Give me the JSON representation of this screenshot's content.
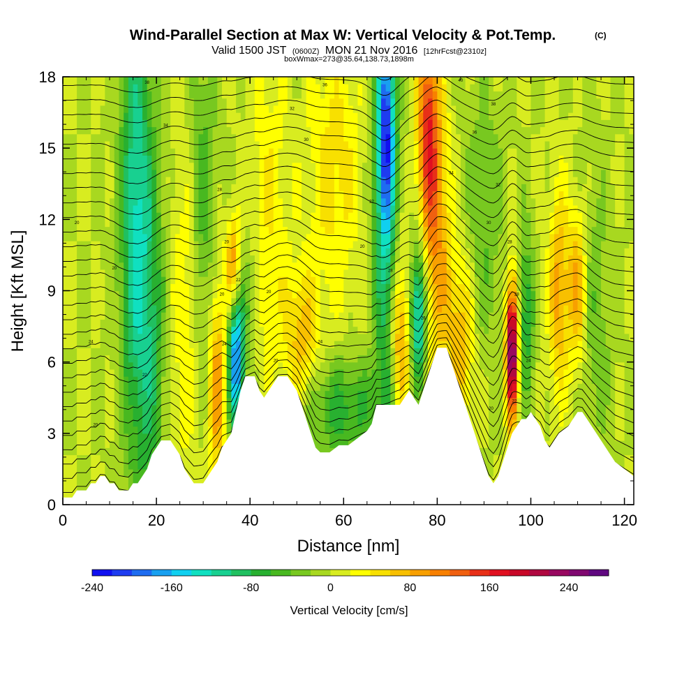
{
  "title": {
    "main": "Wind-Parallel Section at Max W: Vertical Velocity & Pot.Temp.",
    "main_sup": "(C)",
    "valid_a": "Valid 1500 JST",
    "valid_b": "(0600Z)",
    "valid_c": "MON 21 Nov 2016",
    "valid_d": "[12hrFcst@2310z]",
    "box_line": "boxWmax=273@35.64,138.73,1898m"
  },
  "chart_data": {
    "type": "heatmap",
    "xlabel": "Distance [nm]",
    "ylabel": "Height [Kft MSL]",
    "xlim": [
      0,
      122
    ],
    "ylim": [
      0,
      18
    ],
    "x_ticks": [
      "0",
      "20",
      "40",
      "60",
      "80",
      "100",
      "120"
    ],
    "y_ticks": [
      "0",
      "3",
      "6",
      "9",
      "12",
      "15",
      "18"
    ],
    "colorbar": {
      "label": "Vertical Velocity [cm/s]",
      "range": [
        -240,
        280
      ],
      "step": 20,
      "tick_labels": [
        "-240",
        "-160",
        "-80",
        "0",
        "80",
        "160",
        "240"
      ],
      "colors": [
        "#1010f0",
        "#1e3cf0",
        "#1e6cf0",
        "#18a0f0",
        "#10d0f0",
        "#10e0c0",
        "#18d090",
        "#20c060",
        "#28b030",
        "#48b820",
        "#78c820",
        "#a8d820",
        "#d8ec20",
        "#ffff00",
        "#f8e000",
        "#f8c000",
        "#f8a000",
        "#f88000",
        "#f06010",
        "#e83018",
        "#e01020",
        "#c80828",
        "#b00840",
        "#980860",
        "#800870",
        "#600880"
      ]
    },
    "terrain_profile_kft": [
      [
        0,
        0.3
      ],
      [
        2,
        0.3
      ],
      [
        3,
        0.6
      ],
      [
        5,
        0.6
      ],
      [
        6,
        0.9
      ],
      [
        7,
        0.9
      ],
      [
        8,
        1.2
      ],
      [
        9,
        1.2
      ],
      [
        10,
        0.9
      ],
      [
        11,
        0.9
      ],
      [
        12,
        0.6
      ],
      [
        14,
        0.6
      ],
      [
        15,
        0.9
      ],
      [
        16,
        0.9
      ],
      [
        17,
        1.2
      ],
      [
        18,
        1.5
      ],
      [
        19,
        2.1
      ],
      [
        20,
        2.4
      ],
      [
        21,
        2.7
      ],
      [
        23,
        2.7
      ],
      [
        24,
        2.4
      ],
      [
        25,
        2.1
      ],
      [
        26,
        1.5
      ],
      [
        27,
        1.2
      ],
      [
        28,
        0.9
      ],
      [
        30,
        0.9
      ],
      [
        31,
        1.2
      ],
      [
        32,
        1.5
      ],
      [
        33,
        1.8
      ],
      [
        34,
        2.4
      ],
      [
        35,
        2.7
      ],
      [
        36,
        3.0
      ],
      [
        37,
        3.9
      ],
      [
        38,
        4.8
      ],
      [
        39,
        5.4
      ],
      [
        41,
        5.4
      ],
      [
        42,
        4.8
      ],
      [
        43,
        4.5
      ],
      [
        44,
        4.8
      ],
      [
        45,
        5.1
      ],
      [
        46,
        5.4
      ],
      [
        48,
        5.4
      ],
      [
        50,
        4.8
      ],
      [
        51,
        4.2
      ],
      [
        52,
        3.6
      ],
      [
        53,
        3.0
      ],
      [
        54,
        2.4
      ],
      [
        55,
        2.2
      ],
      [
        57,
        2.2
      ],
      [
        59,
        2.5
      ],
      [
        61,
        2.5
      ],
      [
        63,
        2.8
      ],
      [
        65,
        3.1
      ],
      [
        66,
        3.4
      ],
      [
        67,
        4.2
      ],
      [
        70,
        4.2
      ],
      [
        72,
        4.2
      ],
      [
        73,
        4.5
      ],
      [
        74,
        4.8
      ],
      [
        75,
        4.5
      ],
      [
        76,
        4.2
      ],
      [
        77,
        4.8
      ],
      [
        78,
        5.4
      ],
      [
        79,
        6.0
      ],
      [
        80,
        6.6
      ],
      [
        82,
        6.6
      ],
      [
        83,
        6.0
      ],
      [
        84,
        5.4
      ],
      [
        85,
        4.8
      ],
      [
        86,
        4.2
      ],
      [
        87,
        3.6
      ],
      [
        88,
        3.0
      ],
      [
        89,
        2.4
      ],
      [
        90,
        1.8
      ],
      [
        91,
        1.2
      ],
      [
        92,
        0.9
      ],
      [
        93,
        1.2
      ],
      [
        94,
        1.8
      ],
      [
        95,
        2.4
      ],
      [
        96,
        3.0
      ],
      [
        97,
        3.3
      ],
      [
        98,
        3.6
      ],
      [
        99,
        3.6
      ],
      [
        100,
        3.9
      ],
      [
        101,
        3.6
      ],
      [
        102,
        3.3
      ],
      [
        103,
        2.7
      ],
      [
        104,
        2.4
      ],
      [
        105,
        2.7
      ],
      [
        106,
        3.0
      ],
      [
        108,
        3.3
      ],
      [
        110,
        3.9
      ],
      [
        111,
        3.9
      ],
      [
        112,
        3.6
      ],
      [
        113,
        3.3
      ],
      [
        114,
        3.0
      ],
      [
        115,
        2.7
      ],
      [
        116,
        2.4
      ],
      [
        117,
        2.1
      ],
      [
        118,
        1.8
      ],
      [
        120,
        1.5
      ],
      [
        122,
        1.2
      ]
    ],
    "w_features": [
      {
        "x": 15.5,
        "z": 12,
        "sx": 2.2,
        "sz": 7,
        "w": -120
      },
      {
        "x": 19,
        "z": 7,
        "sx": 2,
        "sz": 6,
        "w": -70
      },
      {
        "x": 37,
        "z": 6,
        "sx": 1.2,
        "sz": 2,
        "w": -190
      },
      {
        "x": 33,
        "z": 5,
        "sx": 1.3,
        "sz": 3,
        "w": 100
      },
      {
        "x": 36.5,
        "z": 10,
        "sx": 1.2,
        "sz": 1.5,
        "w": 110
      },
      {
        "x": 39,
        "z": 9,
        "sx": 2,
        "sz": 2,
        "w": -40
      },
      {
        "x": 26,
        "z": 8,
        "sx": 2,
        "sz": 5,
        "w": 40
      },
      {
        "x": 30,
        "z": 13,
        "sx": 2,
        "sz": 5,
        "w": -50
      },
      {
        "x": 44,
        "z": 12,
        "sx": 3,
        "sz": 5,
        "w": 40
      },
      {
        "x": 51,
        "z": 7,
        "sx": 2.5,
        "sz": 2,
        "w": 70
      },
      {
        "x": 60,
        "z": 4,
        "sx": 6,
        "sz": 1.5,
        "w": -70
      },
      {
        "x": 69,
        "z": 16,
        "sx": 1.4,
        "sz": 3,
        "w": -160
      },
      {
        "x": 69,
        "z": 11,
        "sx": 1.8,
        "sz": 6,
        "w": -100
      },
      {
        "x": 72,
        "z": 7,
        "sx": 1.5,
        "sz": 2.5,
        "w": 100
      },
      {
        "x": 78,
        "z": 16,
        "sx": 1.6,
        "sz": 3,
        "w": 140
      },
      {
        "x": 80,
        "z": 11,
        "sx": 2,
        "sz": 4,
        "w": 90
      },
      {
        "x": 76,
        "z": 8,
        "sx": 1.2,
        "sz": 2,
        "w": -150
      },
      {
        "x": 85,
        "z": 7,
        "sx": 2,
        "sz": 2.5,
        "w": 80
      },
      {
        "x": 96,
        "z": 6.5,
        "sx": 0.9,
        "sz": 2,
        "w": 270
      },
      {
        "x": 99,
        "z": 8,
        "sx": 1.2,
        "sz": 2.5,
        "w": -80
      },
      {
        "x": 106,
        "z": 9,
        "sx": 1.5,
        "sz": 3,
        "w": 90
      },
      {
        "x": 110,
        "z": 9,
        "sx": 1.5,
        "sz": 2.5,
        "w": 100
      },
      {
        "x": 113,
        "z": 8,
        "sx": 3,
        "sz": 4,
        "w": -40
      },
      {
        "x": 90,
        "z": 12,
        "sx": 3,
        "sz": 4,
        "w": -40
      },
      {
        "x": 58,
        "z": 14,
        "sx": 4,
        "sz": 4,
        "w": 50
      }
    ],
    "theta_contour_labels": [
      {
        "text": "38",
        "x": 18,
        "z": 17.7
      },
      {
        "text": "36",
        "x": 56,
        "z": 17.6
      },
      {
        "text": "40",
        "x": 85,
        "z": 17.8
      },
      {
        "text": "34",
        "x": 22,
        "z": 15.9
      },
      {
        "text": "32",
        "x": 49,
        "z": 16.6
      },
      {
        "text": "30",
        "x": 52,
        "z": 15.3
      },
      {
        "text": "38",
        "x": 92,
        "z": 16.8
      },
      {
        "text": "36",
        "x": 88,
        "z": 15.6
      },
      {
        "text": "28",
        "x": 33.5,
        "z": 13.2
      },
      {
        "text": "34",
        "x": 83,
        "z": 13.9
      },
      {
        "text": "32",
        "x": 93,
        "z": 13.4
      },
      {
        "text": "22",
        "x": 66,
        "z": 12.7
      },
      {
        "text": "20",
        "x": 3,
        "z": 11.8
      },
      {
        "text": "30",
        "x": 91,
        "z": 11.8
      },
      {
        "text": "20",
        "x": 35,
        "z": 11.0
      },
      {
        "text": "20",
        "x": 64,
        "z": 10.8
      },
      {
        "text": "28",
        "x": 95.5,
        "z": 11.0
      },
      {
        "text": "20",
        "x": 11,
        "z": 9.9
      },
      {
        "text": "28",
        "x": 70,
        "z": 9.8
      },
      {
        "text": "22",
        "x": 37.5,
        "z": 9.4
      },
      {
        "text": "20",
        "x": 34,
        "z": 8.8
      },
      {
        "text": "20",
        "x": 44,
        "z": 8.9
      },
      {
        "text": "28",
        "x": 97,
        "z": 8.8
      },
      {
        "text": "26",
        "x": 77,
        "z": 7.8
      },
      {
        "text": "24",
        "x": 6,
        "z": 6.8
      },
      {
        "text": "24",
        "x": 34.5,
        "z": 6.7
      },
      {
        "text": "24",
        "x": 55,
        "z": 6.8
      },
      {
        "text": "20",
        "x": 45.5,
        "z": 6.0
      },
      {
        "text": "22",
        "x": 17.5,
        "z": 5.4
      },
      {
        "text": "24",
        "x": 99.5,
        "z": 6.0
      },
      {
        "text": "20",
        "x": 7,
        "z": 3.3
      },
      {
        "text": "20",
        "x": 91.5,
        "z": 4.0
      },
      {
        "text": "22",
        "x": 96.5,
        "z": 4.3
      }
    ]
  }
}
